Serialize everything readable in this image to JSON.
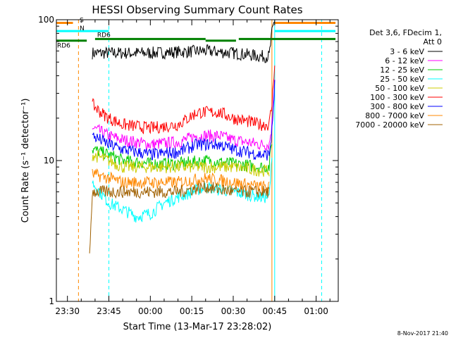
{
  "chart_data": {
    "type": "line",
    "title": "HESSI Observing Summary Count Rates",
    "xlabel": "Start Time (13-Mar-17 23:28:02)",
    "ylabel": "Count Rate (s⁻¹ detector⁻¹)",
    "y_scale": "log",
    "ylim": [
      1,
      100
    ],
    "xlim": [
      "23:26",
      "01:08"
    ],
    "y_ticks": [
      "1",
      "10",
      "100"
    ],
    "x_ticks": [
      "23:30",
      "23:45",
      "00:00",
      "00:15",
      "00:30",
      "00:45",
      "01:00"
    ],
    "legend_header": [
      "Det 3,6, FDecim 1,",
      "Att 0"
    ],
    "legend_position": "right",
    "grid": false,
    "footer": "8-Nov-2017 21:40",
    "series": [
      {
        "name": "3 - 6 keV",
        "color": "#000000",
        "x": [
          "23:39",
          "23:45",
          "23:50",
          "00:00",
          "00:10",
          "00:20",
          "00:30",
          "00:40",
          "00:43",
          "00:44",
          "00:45"
        ],
        "y": [
          58,
          58,
          58,
          58,
          59,
          60,
          58,
          55,
          55,
          80,
          100
        ]
      },
      {
        "name": "6 - 12 keV",
        "color": "#ff00ff",
        "x": [
          "23:39",
          "23:42",
          "23:45",
          "23:50",
          "00:00",
          "00:10",
          "00:17",
          "00:25",
          "00:30",
          "00:40",
          "00:43",
          "00:44",
          "00:45"
        ],
        "y": [
          17,
          16,
          15,
          14,
          13,
          13.5,
          15,
          15,
          14,
          13,
          13,
          18,
          40
        ]
      },
      {
        "name": "12 - 25 keV",
        "color": "#00cc00",
        "x": [
          "23:39",
          "23:45",
          "23:50",
          "00:00",
          "00:10",
          "00:20",
          "00:30",
          "00:40",
          "00:43",
          "00:44"
        ],
        "y": [
          12,
          11,
          10,
          9.5,
          9.5,
          10,
          9.5,
          9,
          9,
          14
        ]
      },
      {
        "name": "25 - 50 keV",
        "color": "#00ffff",
        "x": [
          "23:39",
          "23:45",
          "23:50",
          "23:55",
          "00:00",
          "00:05",
          "00:10",
          "00:20",
          "00:30",
          "00:40",
          "00:43",
          "00:44"
        ],
        "y": [
          7,
          5,
          4.5,
          4,
          4.2,
          5,
          5.5,
          6.5,
          6,
          5.5,
          5.5,
          10
        ]
      },
      {
        "name": "50 - 100 keV",
        "color": "#cccc00",
        "x": [
          "23:39",
          "23:45",
          "23:50",
          "00:00",
          "00:10",
          "00:20",
          "00:30",
          "00:40",
          "00:43"
        ],
        "y": [
          11,
          10,
          9,
          9,
          9,
          9,
          9,
          8.5,
          8.5
        ]
      },
      {
        "name": "100 - 300 keV",
        "color": "#ff0000",
        "x": [
          "23:39",
          "23:42",
          "23:45",
          "23:50",
          "00:00",
          "00:10",
          "00:17",
          "00:25",
          "00:30",
          "00:40",
          "00:43",
          "00:44",
          "00:45"
        ],
        "y": [
          25,
          22,
          20,
          18,
          17,
          18,
          22,
          22,
          20,
          18,
          18,
          25,
          50
        ]
      },
      {
        "name": "300 - 800 keV",
        "color": "#0000ff",
        "x": [
          "23:39",
          "23:42",
          "23:45",
          "23:50",
          "00:00",
          "00:10",
          "00:17",
          "00:25",
          "00:30",
          "00:40",
          "00:43",
          "00:44",
          "00:45"
        ],
        "y": [
          15,
          14,
          13,
          12,
          11,
          11.5,
          13,
          13,
          12,
          11,
          11,
          16,
          35
        ]
      },
      {
        "name": "800 - 7000 keV",
        "color": "#ff8800",
        "x": [
          "23:39",
          "23:45",
          "23:50",
          "00:00",
          "00:10",
          "00:20",
          "00:30",
          "00:40",
          "00:43"
        ],
        "y": [
          8,
          7.5,
          7,
          7,
          7,
          7.5,
          7,
          6.5,
          6.5
        ]
      },
      {
        "name": "7000 - 20000 keV",
        "color": "#a06000",
        "x": [
          "23:38",
          "23:39",
          "23:45",
          "23:50",
          "00:00",
          "00:10",
          "00:20",
          "00:30",
          "00:40",
          "00:43"
        ],
        "y": [
          2,
          6,
          6,
          6,
          6,
          6,
          6.5,
          6,
          6,
          6
        ]
      }
    ],
    "annotations": [
      {
        "label": "S",
        "color": "#ff8800",
        "y": 95,
        "x": [
          "23:26",
          "23:32"
        ]
      },
      {
        "label": "",
        "color": "#ff8800",
        "y": 95,
        "x": [
          "00:45",
          "01:07"
        ]
      },
      {
        "label": "N",
        "color": "#00ffff",
        "y": 83,
        "x": [
          "23:26",
          "23:45"
        ]
      },
      {
        "label": "",
        "color": "#00ffff",
        "y": 83,
        "x": [
          "00:45",
          "01:07"
        ]
      },
      {
        "label": "RD6",
        "color": "#008000",
        "y": 71,
        "x": [
          "23:26",
          "23:37"
        ]
      },
      {
        "label": "RD6",
        "color": "#008000",
        "y": 73,
        "x": [
          "23:40",
          "00:20"
        ]
      },
      {
        "label": "",
        "color": "#008000",
        "y": 71,
        "x": [
          "00:20",
          "00:31"
        ]
      },
      {
        "label": "",
        "color": "#008000",
        "y": 73,
        "x": [
          "00:32",
          "01:07"
        ]
      }
    ],
    "vlines": [
      {
        "x": "23:26",
        "color": "#00ffff",
        "style": "solid"
      },
      {
        "x": "23:34",
        "color": "#ff8800",
        "style": "dashed"
      },
      {
        "x": "23:45",
        "color": "#00ffff",
        "style": "dashed"
      },
      {
        "x": "00:44",
        "color": "#ff8800",
        "style": "solid"
      },
      {
        "x": "00:45",
        "color": "#00ffff",
        "style": "solid"
      },
      {
        "x": "01:02",
        "color": "#00ffff",
        "style": "dashed"
      }
    ]
  }
}
